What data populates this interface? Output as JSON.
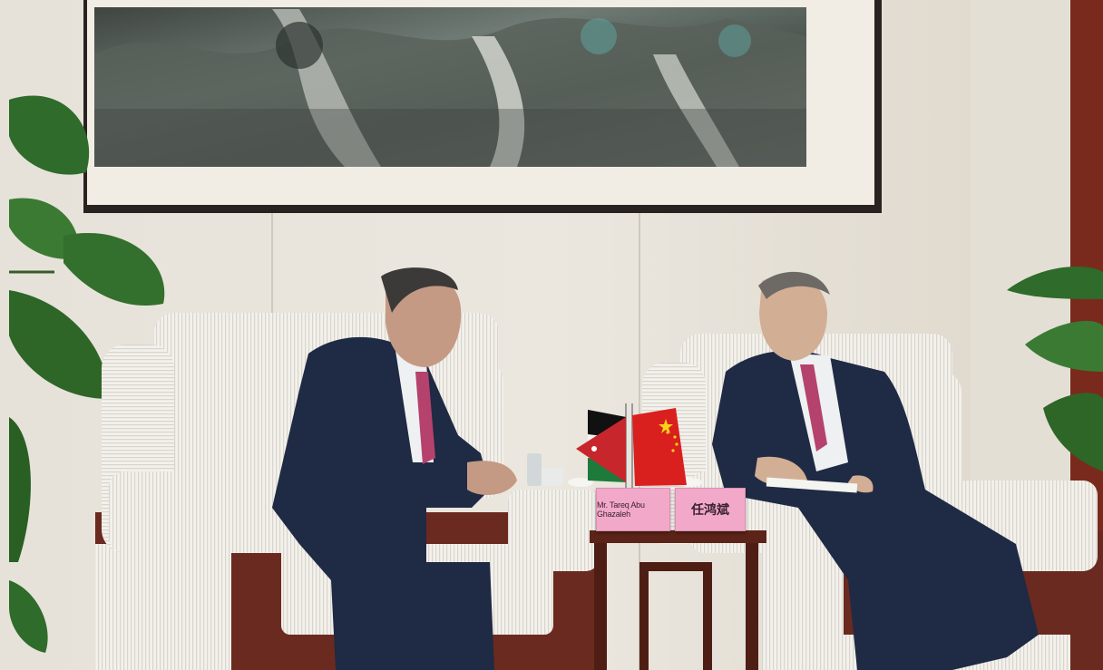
{
  "photo": {
    "description_free": true,
    "nameplates": {
      "left": "Mr. Tareq Abu Ghazaleh",
      "right": "任鸿斌"
    },
    "colors": {
      "wall": "#e8e4dc",
      "chair": "#f1efe9",
      "suit": "#1f2a44",
      "tie": "#b5426c",
      "wood": "#6b2a1f",
      "plant": "#2f6b2a"
    }
  }
}
